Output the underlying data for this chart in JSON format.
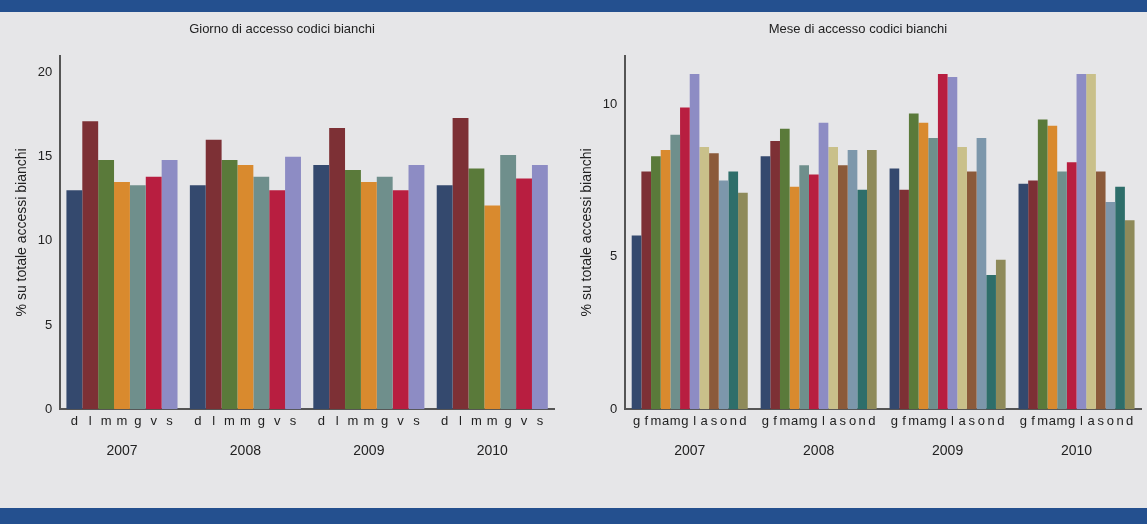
{
  "chart_data": [
    {
      "type": "bar",
      "title": "Giorno di accesso codici bianchi",
      "ylabel": "% su totale accessi bianchi",
      "categories": [
        "2007",
        "2008",
        "2009",
        "2010"
      ],
      "ylim": [
        0,
        21
      ],
      "yticks": [
        0,
        5,
        10,
        15,
        20
      ],
      "series": [
        {
          "name": "d",
          "color": "#34496e",
          "values": [
            13.0,
            13.3,
            14.5,
            13.3
          ]
        },
        {
          "name": "l",
          "color": "#7d3035",
          "values": [
            17.1,
            16.0,
            16.7,
            17.3
          ]
        },
        {
          "name": "m",
          "color": "#5a7a3a",
          "values": [
            14.8,
            14.8,
            14.2,
            14.3
          ]
        },
        {
          "name": "m",
          "color": "#d98a2e",
          "values": [
            13.5,
            14.5,
            13.5,
            12.1
          ]
        },
        {
          "name": "g",
          "color": "#6f8f8c",
          "values": [
            13.3,
            13.8,
            13.8,
            15.1
          ]
        },
        {
          "name": "v",
          "color": "#b81e40",
          "values": [
            13.8,
            13.0,
            13.0,
            13.7
          ]
        },
        {
          "name": "s",
          "color": "#8d8cc4",
          "values": [
            14.8,
            15.0,
            14.5,
            14.5
          ]
        }
      ]
    },
    {
      "type": "bar",
      "title": "Mese di accesso codici bianchi",
      "ylabel": "% su totale accessi bianchi",
      "categories": [
        "2007",
        "2008",
        "2009",
        "2010"
      ],
      "ylim": [
        0,
        11.6
      ],
      "yticks": [
        0,
        5,
        10
      ],
      "series": [
        {
          "name": "g",
          "color": "#34496e",
          "values": [
            5.7,
            8.3,
            7.9,
            7.4
          ]
        },
        {
          "name": "f",
          "color": "#7d3035",
          "values": [
            7.8,
            8.8,
            7.2,
            7.5
          ]
        },
        {
          "name": "m",
          "color": "#5a7a3a",
          "values": [
            8.3,
            9.2,
            9.7,
            9.5
          ]
        },
        {
          "name": "a",
          "color": "#d98a2e",
          "values": [
            8.5,
            7.3,
            9.4,
            9.3
          ]
        },
        {
          "name": "m",
          "color": "#6f8f8c",
          "values": [
            9.0,
            8.0,
            8.9,
            7.8
          ]
        },
        {
          "name": "g",
          "color": "#b81e40",
          "values": [
            9.9,
            7.7,
            11.0,
            8.1
          ]
        },
        {
          "name": "l",
          "color": "#8d8cc4",
          "values": [
            11.0,
            9.4,
            10.9,
            11.0
          ]
        },
        {
          "name": "a",
          "color": "#c9c08a",
          "values": [
            8.6,
            8.6,
            8.6,
            11.0
          ]
        },
        {
          "name": "s",
          "color": "#8b5a3a",
          "values": [
            8.4,
            8.0,
            7.8,
            7.8
          ]
        },
        {
          "name": "o",
          "color": "#7d97ab",
          "values": [
            7.5,
            8.5,
            8.9,
            6.8
          ]
        },
        {
          "name": "n",
          "color": "#2e6e6a",
          "values": [
            7.8,
            7.2,
            4.4,
            7.3
          ]
        },
        {
          "name": "d",
          "color": "#8e8a5a",
          "values": [
            7.1,
            8.5,
            4.9,
            6.2
          ]
        }
      ]
    }
  ]
}
